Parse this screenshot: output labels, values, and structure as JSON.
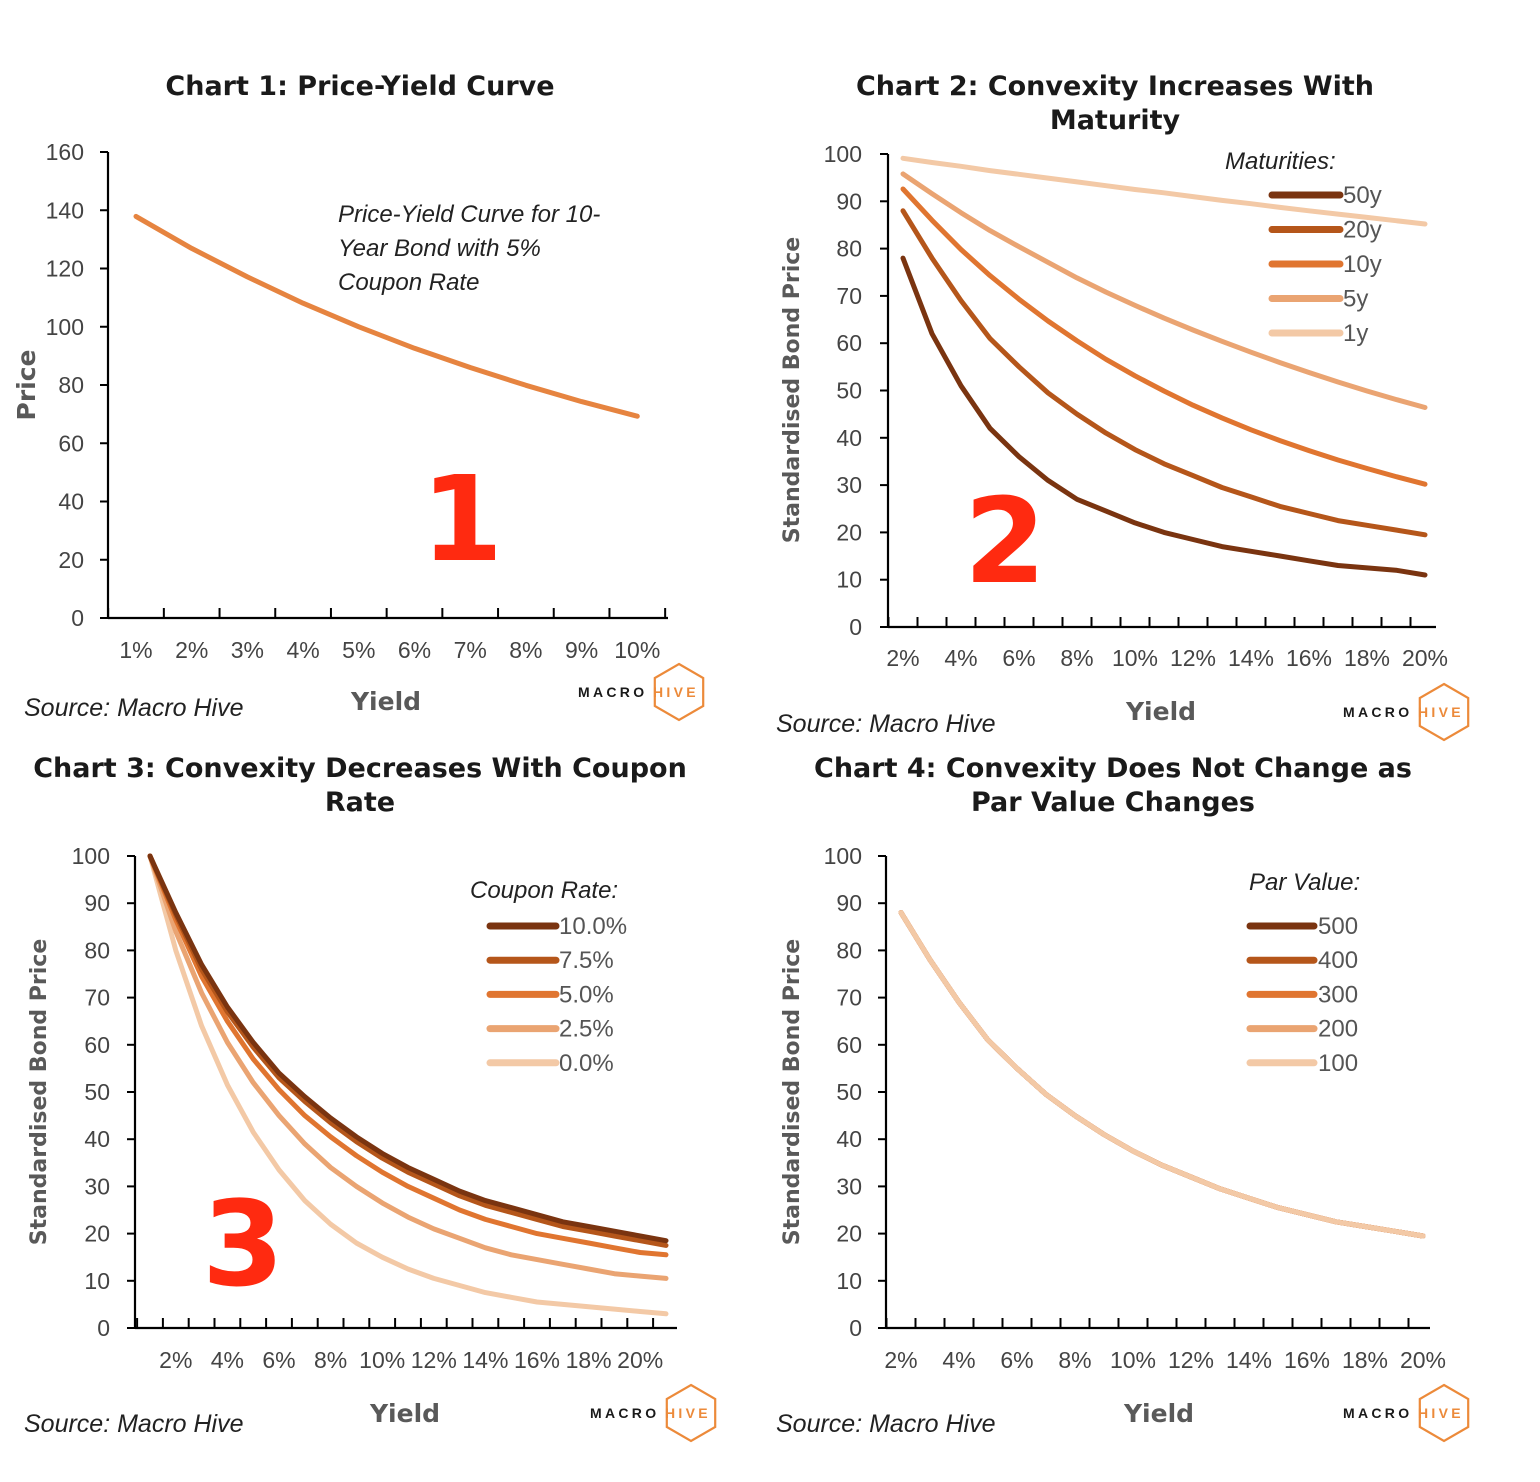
{
  "colors": {
    "brown_50": "#7a3410",
    "burnt_20": "#b5561a",
    "orange_10": "#e07530",
    "peach_5": "#eaa472",
    "light_1": "#f3c9a6",
    "c1_line": "#e68440",
    "axis": "#000000",
    "red_number": "#ff2a10",
    "logo_orange": "#ec8a3a"
  },
  "logo": {
    "left": "MACRO",
    "right": "HIVE"
  },
  "chart_data": [
    {
      "id": "c1",
      "type": "line",
      "title": "Chart 1: Price-Yield Curve",
      "xlabel": "Yield",
      "ylabel": "Price",
      "source": "Source: Macro Hive",
      "number": "1",
      "annotation": [
        "Price-Yield Curve for 10-",
        "Year Bond with 5%",
        "Coupon Rate"
      ],
      "categories": [
        "1%",
        "2%",
        "3%",
        "4%",
        "5%",
        "6%",
        "7%",
        "8%",
        "9%",
        "10%"
      ],
      "ylim": [
        0,
        160
      ],
      "yticks": [
        0,
        20,
        40,
        60,
        80,
        100,
        120,
        140,
        160
      ],
      "series": [
        {
          "color": "#e68440",
          "values": [
            137.9,
            126.9,
            117.1,
            108.1,
            100.0,
            92.6,
            86.0,
            79.9,
            74.3,
            69.3
          ]
        }
      ]
    },
    {
      "id": "c2",
      "type": "line",
      "title": "Chart 2: Convexity Increases With Maturity",
      "xlabel": "Yield",
      "ylabel": "Standardised Bond Price",
      "source": "Source: Macro Hive",
      "number": "2",
      "legend_title": "Maturities:",
      "categories": [
        "2%",
        "3%",
        "4%",
        "5%",
        "6%",
        "7%",
        "8%",
        "9%",
        "10%",
        "11%",
        "12%",
        "13%",
        "14%",
        "15%",
        "16%",
        "17%",
        "18%",
        "19%",
        "20%"
      ],
      "tick_labels": [
        "2%",
        "4%",
        "6%",
        "8%",
        "10%",
        "12%",
        "14%",
        "16%",
        "18%",
        "20%"
      ],
      "ylim": [
        0,
        100
      ],
      "yticks": [
        0,
        10,
        20,
        30,
        40,
        50,
        60,
        70,
        80,
        90,
        100
      ],
      "series": [
        {
          "name": "50y",
          "color": "#7a3410",
          "values": [
            78,
            62,
            51,
            42,
            36,
            31,
            27,
            24.5,
            22,
            20,
            18.5,
            17,
            16,
            15,
            14,
            13,
            12.5,
            12,
            11
          ]
        },
        {
          "name": "20y",
          "color": "#b5561a",
          "values": [
            88,
            78,
            69,
            61,
            55,
            49.5,
            45,
            41,
            37.5,
            34.5,
            32,
            29.5,
            27.5,
            25.5,
            24,
            22.5,
            21.5,
            20.5,
            19.5
          ]
        },
        {
          "name": "10y",
          "color": "#e07530",
          "values": [
            92.6,
            86,
            79.8,
            74.3,
            69.3,
            64.7,
            60.5,
            56.6,
            53.1,
            49.9,
            46.9,
            44.2,
            41.7,
            39.4,
            37.3,
            35.3,
            33.5,
            31.8,
            30.2
          ]
        },
        {
          "name": "5y",
          "color": "#eaa472",
          "values": [
            95.8,
            91.6,
            87.6,
            83.8,
            80.4,
            77.1,
            73.8,
            70.8,
            68.0,
            65.3,
            62.8,
            60.4,
            58.1,
            55.9,
            53.8,
            51.8,
            49.9,
            48.1,
            46.4
          ]
        },
        {
          "name": "1y",
          "color": "#f3c9a6",
          "values": [
            99.1,
            98.2,
            97.4,
            96.5,
            95.7,
            94.9,
            94.1,
            93.3,
            92.5,
            91.8,
            91.0,
            90.2,
            89.5,
            88.7,
            88.0,
            87.3,
            86.6,
            85.9,
            85.2
          ]
        }
      ]
    },
    {
      "id": "c3",
      "type": "line",
      "title": "Chart 3: Convexity Decreases With Coupon Rate",
      "xlabel": "Yield",
      "ylabel": "Standardised Bond Price",
      "source": "Source: Macro Hive",
      "number": "3",
      "legend_title": "Coupon Rate:",
      "categories": [
        "1%",
        "2%",
        "3%",
        "4%",
        "5%",
        "6%",
        "7%",
        "8%",
        "9%",
        "10%",
        "11%",
        "12%",
        "13%",
        "14%",
        "15%",
        "16%",
        "17%",
        "18%",
        "19%",
        "20%",
        "21%"
      ],
      "tick_labels": [
        "2%",
        "4%",
        "6%",
        "8%",
        "10%",
        "12%",
        "14%",
        "16%",
        "18%",
        "20%"
      ],
      "ylim": [
        0,
        100
      ],
      "yticks": [
        0,
        10,
        20,
        30,
        40,
        50,
        60,
        70,
        80,
        90,
        100
      ],
      "series": [
        {
          "name": "10.0%",
          "color": "#7a3410",
          "values": [
            100,
            88,
            77,
            68,
            60.5,
            54,
            49,
            44.5,
            40.5,
            37,
            34,
            31.5,
            29,
            27,
            25.5,
            24,
            22.5,
            21.5,
            20.5,
            19.5,
            18.5
          ]
        },
        {
          "name": "7.5%",
          "color": "#b5561a",
          "values": [
            100,
            87.5,
            76,
            67,
            59.5,
            53,
            48,
            43.5,
            39.5,
            36,
            33,
            30.5,
            28,
            26,
            24.5,
            23,
            21.5,
            20.5,
            19.5,
            18.5,
            17.5
          ]
        },
        {
          "name": "5.0%",
          "color": "#e07530",
          "values": [
            100,
            86.5,
            74.5,
            65,
            57,
            50.5,
            45,
            40.5,
            36.5,
            33,
            30,
            27.5,
            25,
            23,
            21.5,
            20,
            19,
            18,
            17,
            16,
            15.5
          ]
        },
        {
          "name": "2.5%",
          "color": "#eaa472",
          "values": [
            100,
            84,
            71,
            60.5,
            52,
            45,
            39,
            34,
            30,
            26.5,
            23.5,
            21,
            19,
            17,
            15.5,
            14.5,
            13.5,
            12.5,
            11.5,
            11,
            10.5
          ]
        },
        {
          "name": "0.0%",
          "color": "#f3c9a6",
          "values": [
            100,
            80,
            64,
            51.5,
            41.5,
            33.5,
            27,
            22,
            18,
            15,
            12.5,
            10.5,
            9,
            7.5,
            6.5,
            5.5,
            5,
            4.5,
            4,
            3.5,
            3
          ]
        }
      ]
    },
    {
      "id": "c4",
      "type": "line",
      "title": "Chart 4: Convexity Does Not Change as Par Value Changes",
      "xlabel": "Yield",
      "ylabel": "Standardised Bond Price",
      "source": "Source: Macro Hive",
      "legend_title": "Par Value:",
      "categories": [
        "2%",
        "3%",
        "4%",
        "5%",
        "6%",
        "7%",
        "8%",
        "9%",
        "10%",
        "11%",
        "12%",
        "13%",
        "14%",
        "15%",
        "16%",
        "17%",
        "18%",
        "19%",
        "20%"
      ],
      "tick_labels": [
        "2%",
        "4%",
        "6%",
        "8%",
        "10%",
        "12%",
        "14%",
        "16%",
        "18%",
        "20%"
      ],
      "ylim": [
        0,
        100
      ],
      "yticks": [
        0,
        10,
        20,
        30,
        40,
        50,
        60,
        70,
        80,
        90,
        100
      ],
      "series": [
        {
          "name": "500",
          "color": "#7a3410",
          "values": [
            88,
            78,
            69,
            61,
            55,
            49.5,
            45,
            41,
            37.5,
            34.5,
            32,
            29.5,
            27.5,
            25.5,
            24,
            22.5,
            21.5,
            20.5,
            19.5
          ]
        },
        {
          "name": "400",
          "color": "#b5561a",
          "values": [
            88,
            78,
            69,
            61,
            55,
            49.5,
            45,
            41,
            37.5,
            34.5,
            32,
            29.5,
            27.5,
            25.5,
            24,
            22.5,
            21.5,
            20.5,
            19.5
          ]
        },
        {
          "name": "300",
          "color": "#e07530",
          "values": [
            88,
            78,
            69,
            61,
            55,
            49.5,
            45,
            41,
            37.5,
            34.5,
            32,
            29.5,
            27.5,
            25.5,
            24,
            22.5,
            21.5,
            20.5,
            19.5
          ]
        },
        {
          "name": "200",
          "color": "#eaa472",
          "values": [
            88,
            78,
            69,
            61,
            55,
            49.5,
            45,
            41,
            37.5,
            34.5,
            32,
            29.5,
            27.5,
            25.5,
            24,
            22.5,
            21.5,
            20.5,
            19.5
          ]
        },
        {
          "name": "100",
          "color": "#f3c9a6",
          "values": [
            88,
            78,
            69,
            61,
            55,
            49.5,
            45,
            41,
            37.5,
            34.5,
            32,
            29.5,
            27.5,
            25.5,
            24,
            22.5,
            21.5,
            20.5,
            19.5
          ]
        }
      ]
    }
  ]
}
